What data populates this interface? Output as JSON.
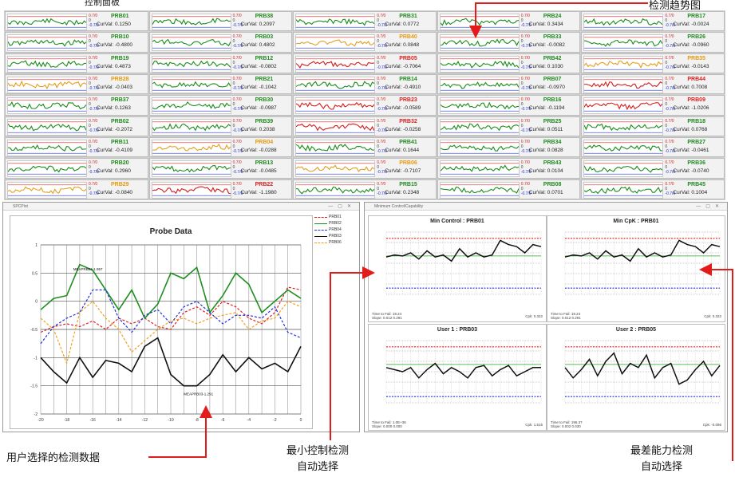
{
  "header_fragment": "控制面板",
  "annotations": {
    "trend": "检测趋势图",
    "user_selected": "用户选择的检测数据",
    "min_control_line1": "最小控制检测",
    "min_control_line2": "自动选择",
    "worst_line1": "最差能力检测",
    "worst_line2": "自动选择"
  },
  "tiles": [
    {
      "name": "PRB01",
      "val": "CurVal: 0.1250",
      "c": "green"
    },
    {
      "name": "PRB10",
      "val": "CurVal: -0.4800",
      "c": "green"
    },
    {
      "name": "PRB19",
      "val": "CurVal: 0.4873",
      "c": "green"
    },
    {
      "name": "PRB28",
      "val": "CurVal: -0.0403",
      "c": "orange"
    },
    {
      "name": "PRB37",
      "val": "CurVal: 0.1263",
      "c": "green"
    },
    {
      "name": "PRB02",
      "val": "CurVal: -0.2072",
      "c": "green"
    },
    {
      "name": "PRB11",
      "val": "CurVal: -0.4109",
      "c": "green"
    },
    {
      "name": "PRB20",
      "val": "CurVal: 0.2960",
      "c": "green"
    },
    {
      "name": "PRB29",
      "val": "CurVal: -0.0840",
      "c": "orange"
    },
    {
      "name": "PRB38",
      "val": "CurVal: 0.2097",
      "c": "green"
    },
    {
      "name": "PRB03",
      "val": "CurVal: 0.4802",
      "c": "green"
    },
    {
      "name": "PRB12",
      "val": "CurVal: -0.0802",
      "c": "green"
    },
    {
      "name": "PRB21",
      "val": "CurVal: -0.1042",
      "c": "green"
    },
    {
      "name": "PRB30",
      "val": "CurVal: -0.0987",
      "c": "green"
    },
    {
      "name": "PRB39",
      "val": "CurVal: 0.2038",
      "c": "green"
    },
    {
      "name": "PRB04",
      "val": "CurVal: -0.0288",
      "c": "orange"
    },
    {
      "name": "PRB13",
      "val": "CurVal: -0.0485",
      "c": "green"
    },
    {
      "name": "PRB22",
      "val": "CurVal: -1.1980",
      "c": "red"
    },
    {
      "name": "PRB31",
      "val": "CurVal: 0.0772",
      "c": "green"
    },
    {
      "name": "PRB40",
      "val": "CurVal: 0.0848",
      "c": "orange"
    },
    {
      "name": "PRB05",
      "val": "CurVal: -0.7064",
      "c": "red"
    },
    {
      "name": "PRB14",
      "val": "CurVal: -0.4910",
      "c": "green"
    },
    {
      "name": "PRB23",
      "val": "CurVal: -0.0589",
      "c": "red"
    },
    {
      "name": "PRB32",
      "val": "CurVal: -0.0258",
      "c": "red"
    },
    {
      "name": "PRB41",
      "val": "CurVal: 0.1644",
      "c": "green"
    },
    {
      "name": "PRB06",
      "val": "CurVal: -0.7107",
      "c": "orange"
    },
    {
      "name": "PRB15",
      "val": "CurVal: 0.2348",
      "c": "green"
    },
    {
      "name": "PRB24",
      "val": "CurVal: 0.3434",
      "c": "green"
    },
    {
      "name": "PRB33",
      "val": "CurVal: -0.0082",
      "c": "green"
    },
    {
      "name": "PRB42",
      "val": "CurVal: 0.1030",
      "c": "green"
    },
    {
      "name": "PRB07",
      "val": "CurVal: -0.0970",
      "c": "green"
    },
    {
      "name": "PRB16",
      "val": "CurVal: -0.1194",
      "c": "green"
    },
    {
      "name": "PRB25",
      "val": "CurVal: 0.0511",
      "c": "green"
    },
    {
      "name": "PRB34",
      "val": "CurVal: 0.0828",
      "c": "green"
    },
    {
      "name": "PRB43",
      "val": "CurVal: 0.0104",
      "c": "green"
    },
    {
      "name": "PRB08",
      "val": "CurVal: 0.0701",
      "c": "green"
    },
    {
      "name": "PRB17",
      "val": "CurVal: -0.0024",
      "c": "green"
    },
    {
      "name": "PRB26",
      "val": "CurVal: -0.0960",
      "c": "green"
    },
    {
      "name": "PRB35",
      "val": "CurVal: -0.0143",
      "c": "orange"
    },
    {
      "name": "PRB44",
      "val": "CurVal: 0.7008",
      "c": "red"
    },
    {
      "name": "PRB09",
      "val": "CurVal: -1.0206",
      "c": "red"
    },
    {
      "name": "PRB18",
      "val": "CurVal: 0.0768",
      "c": "green"
    },
    {
      "name": "PRB27",
      "val": "CurVal: -0.0461",
      "c": "green"
    },
    {
      "name": "PRB36",
      "val": "CurVal: -0.0740",
      "c": "green"
    },
    {
      "name": "PRB45",
      "val": "CurVal: 0.1004",
      "c": "green"
    }
  ],
  "tile_limits": {
    "upper": "0.7/0",
    "zero": "0",
    "lower": "-0.7/0"
  },
  "probe_window": {
    "titlebar": "SPCPlot",
    "chart_title": "Probe Data",
    "legend": [
      {
        "label": "PRB01",
        "color": "#e02020",
        "dash": true
      },
      {
        "label": "PRB02",
        "color": "#1e8f1e",
        "dash": false
      },
      {
        "label": "PRB04",
        "color": "#2030e0",
        "dash": true
      },
      {
        "label": "PRB03",
        "color": "#111111",
        "dash": false
      },
      {
        "label": "PRB06",
        "color": "#f0a020",
        "dash": true
      }
    ],
    "annotation_top": "MEAPRB01-1.957",
    "annotation_bottom": "MEAPRB03-1.291"
  },
  "control_window": {
    "titlebar": "Minimum Control/Capability",
    "panels": [
      {
        "title": "Min Control : PRB01",
        "foot1": "Time to Fail: 19.24",
        "foot2": "Slope: 0.012 0.291",
        "foot_r": "Cpk: 0.322"
      },
      {
        "title": "Min CpK : PRB01",
        "foot1": "Time to Fail: 19.24",
        "foot2": "Slope: 0.012 0.291",
        "foot_r": "Cpk: 0.322"
      },
      {
        "title": "User 1 : PRB03",
        "foot1": "Time to Fail: 1.0E+36",
        "foot2": "Slope: 0.000 0.000",
        "foot_r": "Cpk: 1.515"
      },
      {
        "title": "User 2 : PRB05",
        "foot1": "Time to Fail: 196.37",
        "foot2": "Slope: 0.002 0.030",
        "foot_r": "Cpk: -0.096"
      }
    ]
  },
  "chart_data": {
    "type": "line",
    "title": "Probe Data",
    "x": [
      -20,
      -19,
      -18,
      -17,
      -16,
      -15,
      -14,
      -13,
      -12,
      -11,
      -10,
      -9,
      -8,
      -7,
      -6,
      -5,
      -4,
      -3,
      -2,
      -1,
      0
    ],
    "xticks": [
      "-20",
      "-18",
      "-16",
      "-14",
      "-12",
      "-10",
      "-8",
      "-6",
      "-4",
      "-2",
      "0"
    ],
    "ylim": [
      -2,
      1
    ],
    "yticks": [
      "1",
      "0.5",
      "0",
      "-0.5",
      "-1",
      "-1.5",
      "-2"
    ],
    "series": [
      {
        "name": "PRB01",
        "color": "#e02020",
        "dash": true,
        "values": [
          -0.55,
          -0.45,
          -0.4,
          -0.45,
          -0.35,
          -0.5,
          -0.3,
          -0.4,
          -0.3,
          -0.45,
          -0.5,
          -0.2,
          -0.1,
          -0.25,
          0.0,
          -0.1,
          -0.3,
          -0.4,
          -0.2,
          0.25,
          0.2
        ]
      },
      {
        "name": "PRB02",
        "color": "#1e8f1e",
        "dash": false,
        "values": [
          -0.15,
          0.05,
          0.1,
          0.65,
          0.55,
          0.2,
          -0.15,
          0.2,
          -0.3,
          -0.05,
          0.5,
          0.4,
          0.6,
          -0.2,
          0.1,
          0.5,
          0.3,
          -0.2,
          0.0,
          0.2,
          0.05
        ]
      },
      {
        "name": "PRB04",
        "color": "#2030e0",
        "dash": true,
        "values": [
          -0.75,
          -0.45,
          -0.3,
          -0.2,
          0.2,
          0.2,
          -0.3,
          -0.55,
          -0.25,
          -0.15,
          -0.4,
          -0.1,
          0.0,
          -0.2,
          -0.4,
          -0.25,
          -0.25,
          -0.3,
          -0.1,
          -0.55,
          -0.65
        ]
      },
      {
        "name": "PRB03",
        "color": "#111111",
        "dash": false,
        "values": [
          -1.0,
          -1.25,
          -1.45,
          -1.0,
          -1.35,
          -1.05,
          -1.1,
          -1.25,
          -0.8,
          -0.65,
          -1.3,
          -1.5,
          -1.5,
          -1.3,
          -0.95,
          -1.25,
          -1.0,
          -1.2,
          -1.1,
          -1.25,
          -0.8
        ]
      },
      {
        "name": "PRB06",
        "color": "#f0a020",
        "dash": true,
        "values": [
          -0.3,
          -0.5,
          -1.1,
          -0.2,
          0.0,
          -0.3,
          -0.5,
          -0.9,
          -0.7,
          -0.5,
          -0.35,
          -0.3,
          -0.4,
          -0.3,
          -0.25,
          -0.2,
          -0.5,
          -0.35,
          -0.3,
          0.0,
          -0.1
        ]
      }
    ]
  },
  "control_chart_data": [
    {
      "values": [
        0.3,
        0.4,
        0.35,
        0.5,
        0.2,
        0.6,
        0.3,
        0.4,
        0.1,
        0.7,
        0.3,
        0.5,
        0.3,
        0.4,
        1.1,
        0.9,
        0.8,
        0.5,
        0.9,
        0.8
      ]
    },
    {
      "values": [
        0.3,
        0.4,
        0.35,
        0.5,
        0.2,
        0.6,
        0.3,
        0.4,
        0.1,
        0.7,
        0.3,
        0.5,
        0.3,
        0.4,
        1.1,
        0.9,
        0.8,
        0.5,
        0.9,
        0.8
      ]
    },
    {
      "values": [
        0.2,
        0.1,
        0.0,
        0.2,
        -0.3,
        0.1,
        0.4,
        -0.1,
        0.2,
        0.0,
        -0.3,
        0.2,
        0.3,
        -0.2,
        0.1,
        0.3,
        -0.2,
        0.0,
        0.2,
        0.2
      ]
    },
    {
      "values": [
        0.2,
        -0.3,
        0.1,
        0.6,
        -0.2,
        0.5,
        0.9,
        -0.1,
        0.4,
        0.2,
        0.8,
        -0.3,
        0.2,
        0.4,
        -0.6,
        -0.4,
        0.1,
        0.5,
        -0.2,
        0.3
      ]
    }
  ]
}
